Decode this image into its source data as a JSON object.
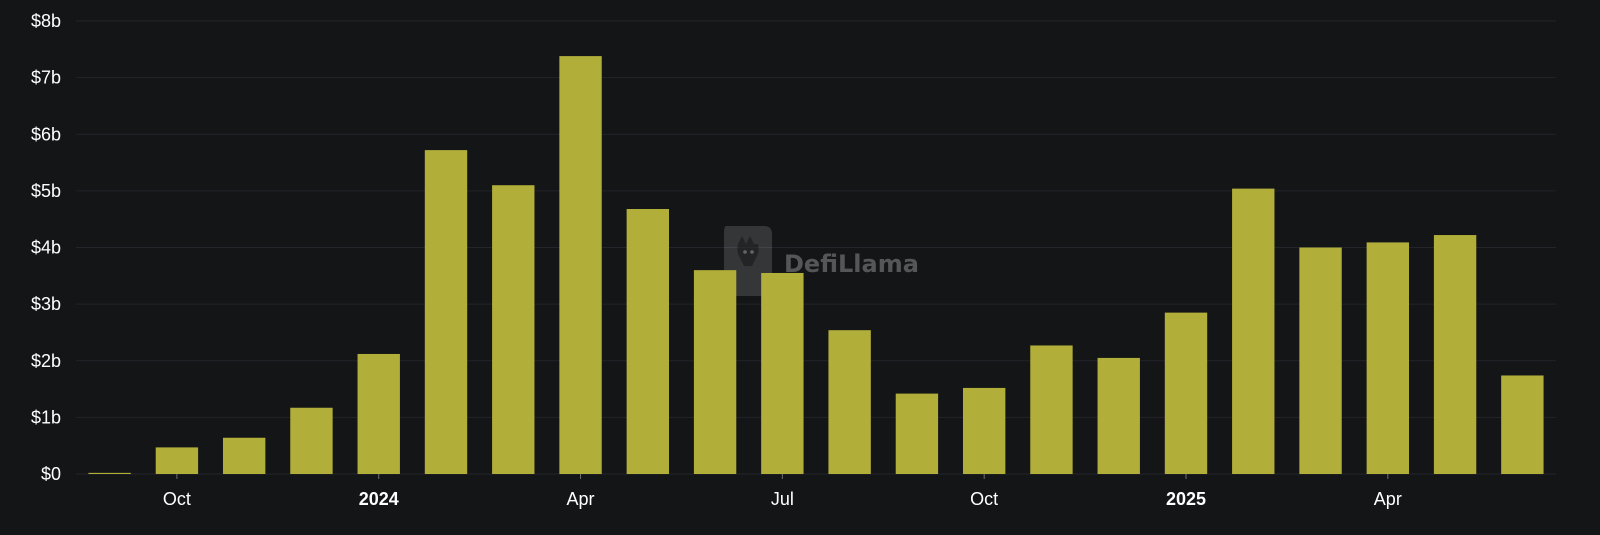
{
  "chart_data": {
    "type": "bar",
    "title": "",
    "xlabel": "",
    "ylabel": "",
    "ylim": [
      0,
      8
    ],
    "y_unit": "billion USD",
    "grid": true,
    "legend": "none",
    "x": [
      "2023-09",
      "2023-10",
      "2023-11",
      "2023-12",
      "2024-01",
      "2024-02",
      "2024-03",
      "2024-04",
      "2024-05",
      "2024-06",
      "2024-07",
      "2024-08",
      "2024-09",
      "2024-10",
      "2024-11",
      "2024-12",
      "2025-01",
      "2025-02",
      "2025-03",
      "2025-04",
      "2025-05",
      "2025-06"
    ],
    "values": [
      0.02,
      0.47,
      0.64,
      1.17,
      2.12,
      5.72,
      5.1,
      7.38,
      4.68,
      3.6,
      3.55,
      2.54,
      1.42,
      1.52,
      2.27,
      2.05,
      2.85,
      5.04,
      4.0,
      4.09,
      4.22,
      1.74
    ],
    "y_ticks": [
      {
        "value": 0,
        "label": "$0"
      },
      {
        "value": 1,
        "label": "$1b"
      },
      {
        "value": 2,
        "label": "$2b"
      },
      {
        "value": 3,
        "label": "$3b"
      },
      {
        "value": 4,
        "label": "$4b"
      },
      {
        "value": 5,
        "label": "$5b"
      },
      {
        "value": 6,
        "label": "$6b"
      },
      {
        "value": 7,
        "label": "$7b"
      },
      {
        "value": 8,
        "label": "$8b"
      }
    ],
    "x_ticks": [
      {
        "at": "2023-10",
        "label": "Oct",
        "bold": false
      },
      {
        "at": "2024-01",
        "label": "2024",
        "bold": true
      },
      {
        "at": "2024-04",
        "label": "Apr",
        "bold": false
      },
      {
        "at": "2024-07",
        "label": "Jul",
        "bold": false
      },
      {
        "at": "2024-10",
        "label": "Oct",
        "bold": false
      },
      {
        "at": "2025-01",
        "label": "2025",
        "bold": true
      },
      {
        "at": "2025-04",
        "label": "Apr",
        "bold": false
      }
    ],
    "colors": {
      "bar": "#b1ae3a",
      "background": "#141517",
      "grid": "#23252a",
      "text": "#ffffff"
    }
  },
  "watermark": {
    "text": "DefiLlama",
    "icon": "llama-logo-icon"
  }
}
